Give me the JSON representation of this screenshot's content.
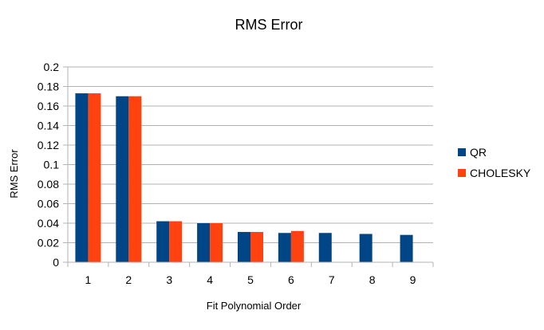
{
  "chart_data": {
    "type": "bar",
    "title": "RMS Error",
    "xlabel": "Fit Polynomial Order",
    "ylabel": "RMS Error",
    "categories": [
      "1",
      "2",
      "3",
      "4",
      "5",
      "6",
      "7",
      "8",
      "9"
    ],
    "series": [
      {
        "name": "QR",
        "color": "#004586",
        "values": [
          0.173,
          0.17,
          0.042,
          0.04,
          0.031,
          0.03,
          0.03,
          0.029,
          0.028
        ]
      },
      {
        "name": "CHOLESKY",
        "color": "#ff420e",
        "values": [
          0.173,
          0.17,
          0.042,
          0.04,
          0.031,
          0.032,
          null,
          null,
          null
        ]
      }
    ],
    "ylim": [
      0,
      0.2
    ],
    "yticks": [
      0,
      0.02,
      0.04,
      0.06,
      0.08,
      0.1,
      0.12,
      0.14,
      0.16,
      0.18,
      0.2
    ],
    "grid": true,
    "legend": "right"
  }
}
